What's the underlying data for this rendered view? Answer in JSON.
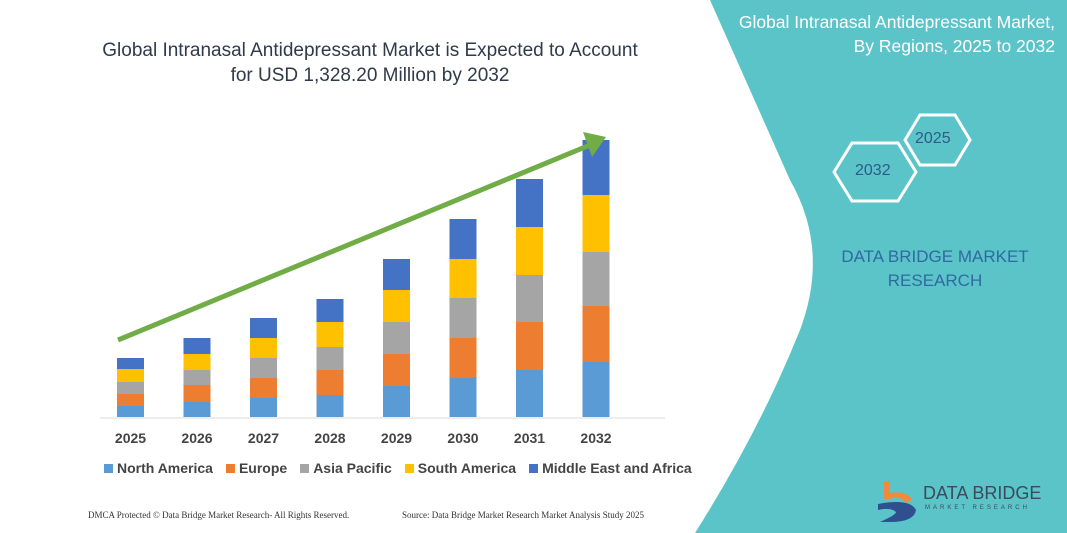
{
  "chart_data": {
    "type": "bar",
    "stacked": true,
    "title": "Global Intranasal Antidepressant Market is Expected to Account for USD 1,328.20 Million by 2032",
    "categories": [
      "2025",
      "2026",
      "2027",
      "2028",
      "2029",
      "2030",
      "2031",
      "2032"
    ],
    "series": [
      {
        "name": "North America",
        "color": "#5b9bd5",
        "values": [
          11,
          15,
          19,
          22,
          31,
          39,
          47,
          55
        ]
      },
      {
        "name": "Europe",
        "color": "#ed7d31",
        "values": [
          12,
          17,
          20,
          25,
          32,
          40,
          48,
          56
        ]
      },
      {
        "name": "Asia Pacific",
        "color": "#a5a5a5",
        "values": [
          12,
          15,
          20,
          23,
          32,
          40,
          47,
          54
        ]
      },
      {
        "name": "South America",
        "color": "#ffc000",
        "values": [
          13,
          16,
          20,
          25,
          32,
          39,
          48,
          57
        ]
      },
      {
        "name": "Middle East and Africa",
        "color": "#4472c4",
        "values": [
          11,
          16,
          20,
          23,
          31,
          40,
          48,
          55
        ]
      }
    ],
    "xlabel": "",
    "ylabel": "",
    "y_axis_shown": false,
    "grid": false,
    "legend": "bottom",
    "trend_arrow_color": "#70ad47"
  },
  "panel": {
    "title": "Global Intranasal Antidepressant Market, By Regions, 2025 to 2032",
    "hex_start": "2025",
    "hex_end": "2032",
    "brand": "DATA BRIDGE MARKET RESEARCH",
    "color": "#5bc4c9"
  },
  "logo": {
    "name": "DATA BRIDGE",
    "sub": "MARKET RESEARCH"
  },
  "footer": {
    "left": "DMCA Protected © Data Bridge Market Research- All Rights Reserved.",
    "right": "Source: Data Bridge Market Research Market Analysis Study 2025"
  }
}
